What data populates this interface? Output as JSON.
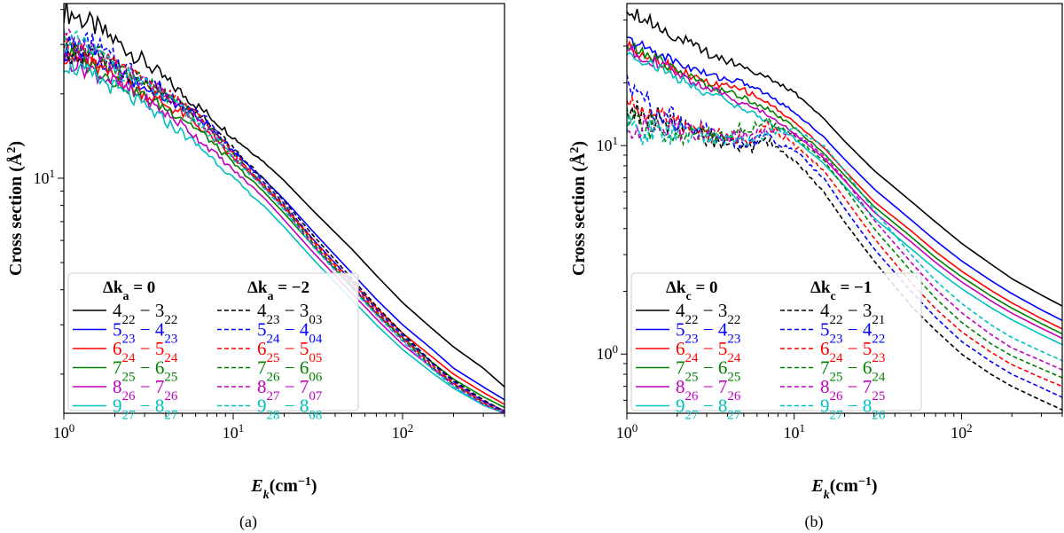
{
  "chart_data": [
    {
      "type": "line",
      "caption": "(a)",
      "xlabel": "E_k(cm^-1)",
      "ylabel": "Cross section (Å^2)",
      "xscale": "log",
      "yscale": "log",
      "xlim": [
        1,
        400
      ],
      "ylim": [
        1.45,
        42
      ],
      "x_ticks": [
        {
          "value": 1,
          "label": "10^0"
        },
        {
          "value": 10,
          "label": "10^1"
        },
        {
          "value": 100,
          "label": "10^2"
        }
      ],
      "y_ticks": [
        {
          "value": 10,
          "label": "10^1"
        }
      ],
      "grid": false,
      "legend": {
        "placement": "lower-left",
        "columns": [
          {
            "header": "Δk_a = 0",
            "entries": [
              "4_22 − 3_22",
              "5_23 − 4_23",
              "6_24 − 5_24",
              "7_25 − 6_25",
              "8_26 − 7_26",
              "9_27 − 8_27"
            ]
          },
          {
            "header": "Δk_a = −2",
            "entries": [
              "4_23 − 3_03",
              "5_24 − 4_04",
              "6_25 − 5_05",
              "7_26 − 6_06",
              "8_27 − 7_07",
              "9_28 − 8_08"
            ]
          }
        ]
      },
      "x": [
        1,
        1.5,
        2,
        3,
        5,
        7,
        10,
        15,
        20,
        30,
        50,
        70,
        100,
        150,
        200,
        300,
        400
      ],
      "series": [
        {
          "name": "4_22 − 3_22",
          "color": "#000000",
          "dash": "solid",
          "noise": 0.06,
          "values": [
            40,
            35,
            31,
            26,
            20,
            17,
            14,
            11.5,
            9.8,
            7.6,
            5.6,
            4.5,
            3.6,
            2.9,
            2.5,
            2.1,
            1.8
          ]
        },
        {
          "name": "5_23 − 4_23",
          "color": "#0000ff",
          "dash": "solid",
          "noise": 0.05,
          "values": [
            28,
            26,
            24,
            21,
            18,
            15.5,
            12.5,
            10,
            8.4,
            6.4,
            4.6,
            3.7,
            3.0,
            2.45,
            2.1,
            1.8,
            1.62
          ]
        },
        {
          "name": "6_24 − 5_24",
          "color": "#ff0000",
          "dash": "solid",
          "noise": 0.05,
          "values": [
            28,
            25,
            23,
            20,
            17,
            14.5,
            11.8,
            9.4,
            7.9,
            6.0,
            4.3,
            3.45,
            2.8,
            2.3,
            2.0,
            1.72,
            1.56
          ]
        },
        {
          "name": "7_25 − 6_25",
          "color": "#008000",
          "dash": "solid",
          "noise": 0.05,
          "values": [
            28,
            25,
            22.5,
            19.5,
            16.5,
            14,
            11.3,
            9.0,
            7.5,
            5.7,
            4.1,
            3.3,
            2.7,
            2.2,
            1.92,
            1.66,
            1.52
          ]
        },
        {
          "name": "8_26 − 7_26",
          "color": "#c000c0",
          "dash": "solid",
          "noise": 0.05,
          "values": [
            27,
            24,
            22,
            19,
            15.5,
            13,
            10.7,
            8.6,
            7.1,
            5.4,
            3.9,
            3.15,
            2.55,
            2.1,
            1.85,
            1.6,
            1.48
          ]
        },
        {
          "name": "9_27 − 8_27",
          "color": "#00bfbf",
          "dash": "solid",
          "noise": 0.05,
          "values": [
            26,
            23,
            21,
            18,
            14.5,
            12.3,
            10,
            8.0,
            6.7,
            5.1,
            3.7,
            3.0,
            2.45,
            2.02,
            1.78,
            1.55,
            1.45
          ]
        },
        {
          "name": "4_23 − 3_03",
          "color": "#000000",
          "dash": "dashed",
          "noise": 0.06,
          "values": [
            29,
            27,
            25,
            22,
            18,
            16,
            12.8,
            10,
            8.3,
            6.2,
            4.4,
            3.5,
            2.8,
            2.2,
            1.9,
            1.62,
            1.47
          ]
        },
        {
          "name": "5_24 − 4_04",
          "color": "#0000ff",
          "dash": "dashed",
          "noise": 0.07,
          "values": [
            29,
            30,
            26,
            23,
            18.5,
            16,
            12.5,
            9.8,
            8.1,
            6.0,
            4.3,
            3.4,
            2.75,
            2.18,
            1.88,
            1.6,
            1.46
          ]
        },
        {
          "name": "6_25 − 5_05",
          "color": "#ff0000",
          "dash": "dashed",
          "noise": 0.06,
          "values": [
            30,
            27,
            25,
            22,
            18.5,
            15.5,
            12.3,
            9.6,
            8.0,
            5.9,
            4.2,
            3.35,
            2.7,
            2.15,
            1.86,
            1.58,
            1.45
          ]
        },
        {
          "name": "7_26 − 6_06",
          "color": "#008000",
          "dash": "dashed",
          "noise": 0.06,
          "values": [
            31,
            28,
            25,
            22,
            18,
            15.2,
            12.1,
            9.5,
            7.9,
            5.8,
            4.15,
            3.3,
            2.68,
            2.12,
            1.84,
            1.57,
            1.45
          ]
        },
        {
          "name": "8_27 − 7_07",
          "color": "#c000c0",
          "dash": "dashed",
          "noise": 0.06,
          "values": [
            31,
            28,
            25,
            22,
            18,
            15,
            12,
            9.4,
            7.8,
            5.7,
            4.1,
            3.28,
            2.65,
            2.1,
            1.82,
            1.56,
            1.45
          ]
        },
        {
          "name": "9_28 − 8_08",
          "color": "#00bfbf",
          "dash": "dashed",
          "noise": 0.06,
          "values": [
            32,
            28,
            25,
            21.5,
            17.5,
            14.8,
            11.8,
            9.3,
            7.7,
            5.65,
            4.05,
            3.25,
            2.62,
            2.08,
            1.8,
            1.55,
            1.45
          ]
        }
      ]
    },
    {
      "type": "line",
      "caption": "(b)",
      "xlabel": "E_k(cm^-1)",
      "ylabel": "Cross section (Å^2)",
      "xscale": "log",
      "yscale": "log",
      "xlim": [
        1,
        400
      ],
      "ylim": [
        0.52,
        48
      ],
      "x_ticks": [
        {
          "value": 1,
          "label": "10^0"
        },
        {
          "value": 10,
          "label": "10^1"
        },
        {
          "value": 100,
          "label": "10^2"
        }
      ],
      "y_ticks": [
        {
          "value": 1,
          "label": "10^0"
        },
        {
          "value": 10,
          "label": "10^1"
        }
      ],
      "grid": false,
      "legend": {
        "placement": "lower-left",
        "columns": [
          {
            "header": "Δk_c = 0",
            "entries": [
              "4_22 − 3_22",
              "5_23 − 4_23",
              "6_24 − 5_24",
              "7_25 − 6_25",
              "8_26 − 7_26",
              "9_27 − 8_27"
            ]
          },
          {
            "header": "Δk_c = −1",
            "entries": [
              "4_22 − 3_21",
              "5_23 − 4_22",
              "6_24 − 5_23",
              "7_25 − 6_24",
              "8_26 − 7_25",
              "9_27 − 8_26"
            ]
          }
        ]
      },
      "x": [
        1,
        1.5,
        2,
        3,
        5,
        7,
        10,
        15,
        20,
        30,
        50,
        70,
        100,
        150,
        200,
        300,
        400
      ],
      "series": [
        {
          "name": "4_22 − 3_22",
          "color": "#000000",
          "dash": "solid",
          "noise": 0.05,
          "values": [
            46,
            38,
            33,
            28,
            24,
            21,
            18,
            13.5,
            10.5,
            7.6,
            5.4,
            4.3,
            3.4,
            2.7,
            2.3,
            1.92,
            1.7
          ]
        },
        {
          "name": "5_23 − 4_23",
          "color": "#0000ff",
          "dash": "solid",
          "noise": 0.04,
          "values": [
            32,
            28,
            25,
            22,
            20,
            17.5,
            14.5,
            11,
            8.6,
            6.2,
            4.4,
            3.5,
            2.8,
            2.25,
            1.95,
            1.63,
            1.45
          ]
        },
        {
          "name": "6_24 − 5_24",
          "color": "#ff0000",
          "dash": "solid",
          "noise": 0.04,
          "values": [
            30,
            26,
            23,
            20,
            18.5,
            16,
            13,
            9.8,
            7.6,
            5.4,
            3.9,
            3.1,
            2.5,
            2.02,
            1.76,
            1.48,
            1.32
          ]
        },
        {
          "name": "7_25 − 6_25",
          "color": "#008000",
          "dash": "solid",
          "noise": 0.04,
          "values": [
            30,
            26,
            23,
            19.5,
            17,
            15,
            12.2,
            9.2,
            7.2,
            5.1,
            3.65,
            2.9,
            2.35,
            1.9,
            1.66,
            1.4,
            1.25
          ]
        },
        {
          "name": "8_26 − 7_26",
          "color": "#c000c0",
          "dash": "solid",
          "noise": 0.04,
          "values": [
            29,
            25,
            22,
            19,
            16,
            14,
            11.5,
            8.7,
            6.8,
            4.8,
            3.45,
            2.75,
            2.22,
            1.8,
            1.57,
            1.33,
            1.19
          ]
        },
        {
          "name": "9_27 − 8_27",
          "color": "#00bfbf",
          "dash": "solid",
          "noise": 0.04,
          "values": [
            28,
            24,
            21,
            18,
            15,
            13,
            10.8,
            8.2,
            6.4,
            4.5,
            3.2,
            2.55,
            2.06,
            1.67,
            1.46,
            1.24,
            1.11
          ]
        },
        {
          "name": "4_22 − 3_21",
          "color": "#000000",
          "dash": "dashed",
          "noise": 0.09,
          "values": [
            15,
            13.5,
            12,
            11,
            9.5,
            10.5,
            8.5,
            6,
            4.3,
            2.8,
            1.7,
            1.3,
            1.0,
            0.8,
            0.7,
            0.6,
            0.54
          ]
        },
        {
          "name": "5_23 − 4_22",
          "color": "#0000ff",
          "dash": "dashed",
          "noise": 0.09,
          "values": [
            19,
            15,
            13,
            11.5,
            10,
            11,
            9.5,
            7,
            5,
            3.2,
            2.0,
            1.5,
            1.15,
            0.92,
            0.8,
            0.69,
            0.62
          ]
        },
        {
          "name": "6_24 − 5_23",
          "color": "#ff0000",
          "dash": "dashed",
          "noise": 0.09,
          "values": [
            15.5,
            14,
            12.5,
            11.5,
            10.5,
            12.5,
            10,
            7.6,
            5.6,
            3.6,
            2.2,
            1.65,
            1.28,
            1.02,
            0.89,
            0.77,
            0.7
          ]
        },
        {
          "name": "7_25 − 6_24",
          "color": "#008000",
          "dash": "dashed",
          "noise": 0.09,
          "values": [
            13,
            12,
            11.5,
            11,
            12,
            13,
            11,
            8.5,
            6.3,
            4.0,
            2.5,
            1.85,
            1.42,
            1.12,
            0.98,
            0.85,
            0.77
          ]
        },
        {
          "name": "8_26 − 7_25",
          "color": "#c000c0",
          "dash": "dashed",
          "noise": 0.09,
          "values": [
            12.5,
            12,
            12,
            11.5,
            11,
            12,
            11.5,
            9,
            6.9,
            4.4,
            2.75,
            2.05,
            1.58,
            1.24,
            1.07,
            0.93,
            0.84
          ]
        },
        {
          "name": "9_27 − 8_26",
          "color": "#00bfbf",
          "dash": "dashed",
          "noise": 0.09,
          "values": [
            12,
            11.5,
            11.5,
            11,
            10.5,
            11.5,
            12,
            10,
            7.6,
            4.9,
            3.0,
            2.25,
            1.75,
            1.38,
            1.2,
            1.03,
            0.93
          ]
        }
      ]
    }
  ]
}
